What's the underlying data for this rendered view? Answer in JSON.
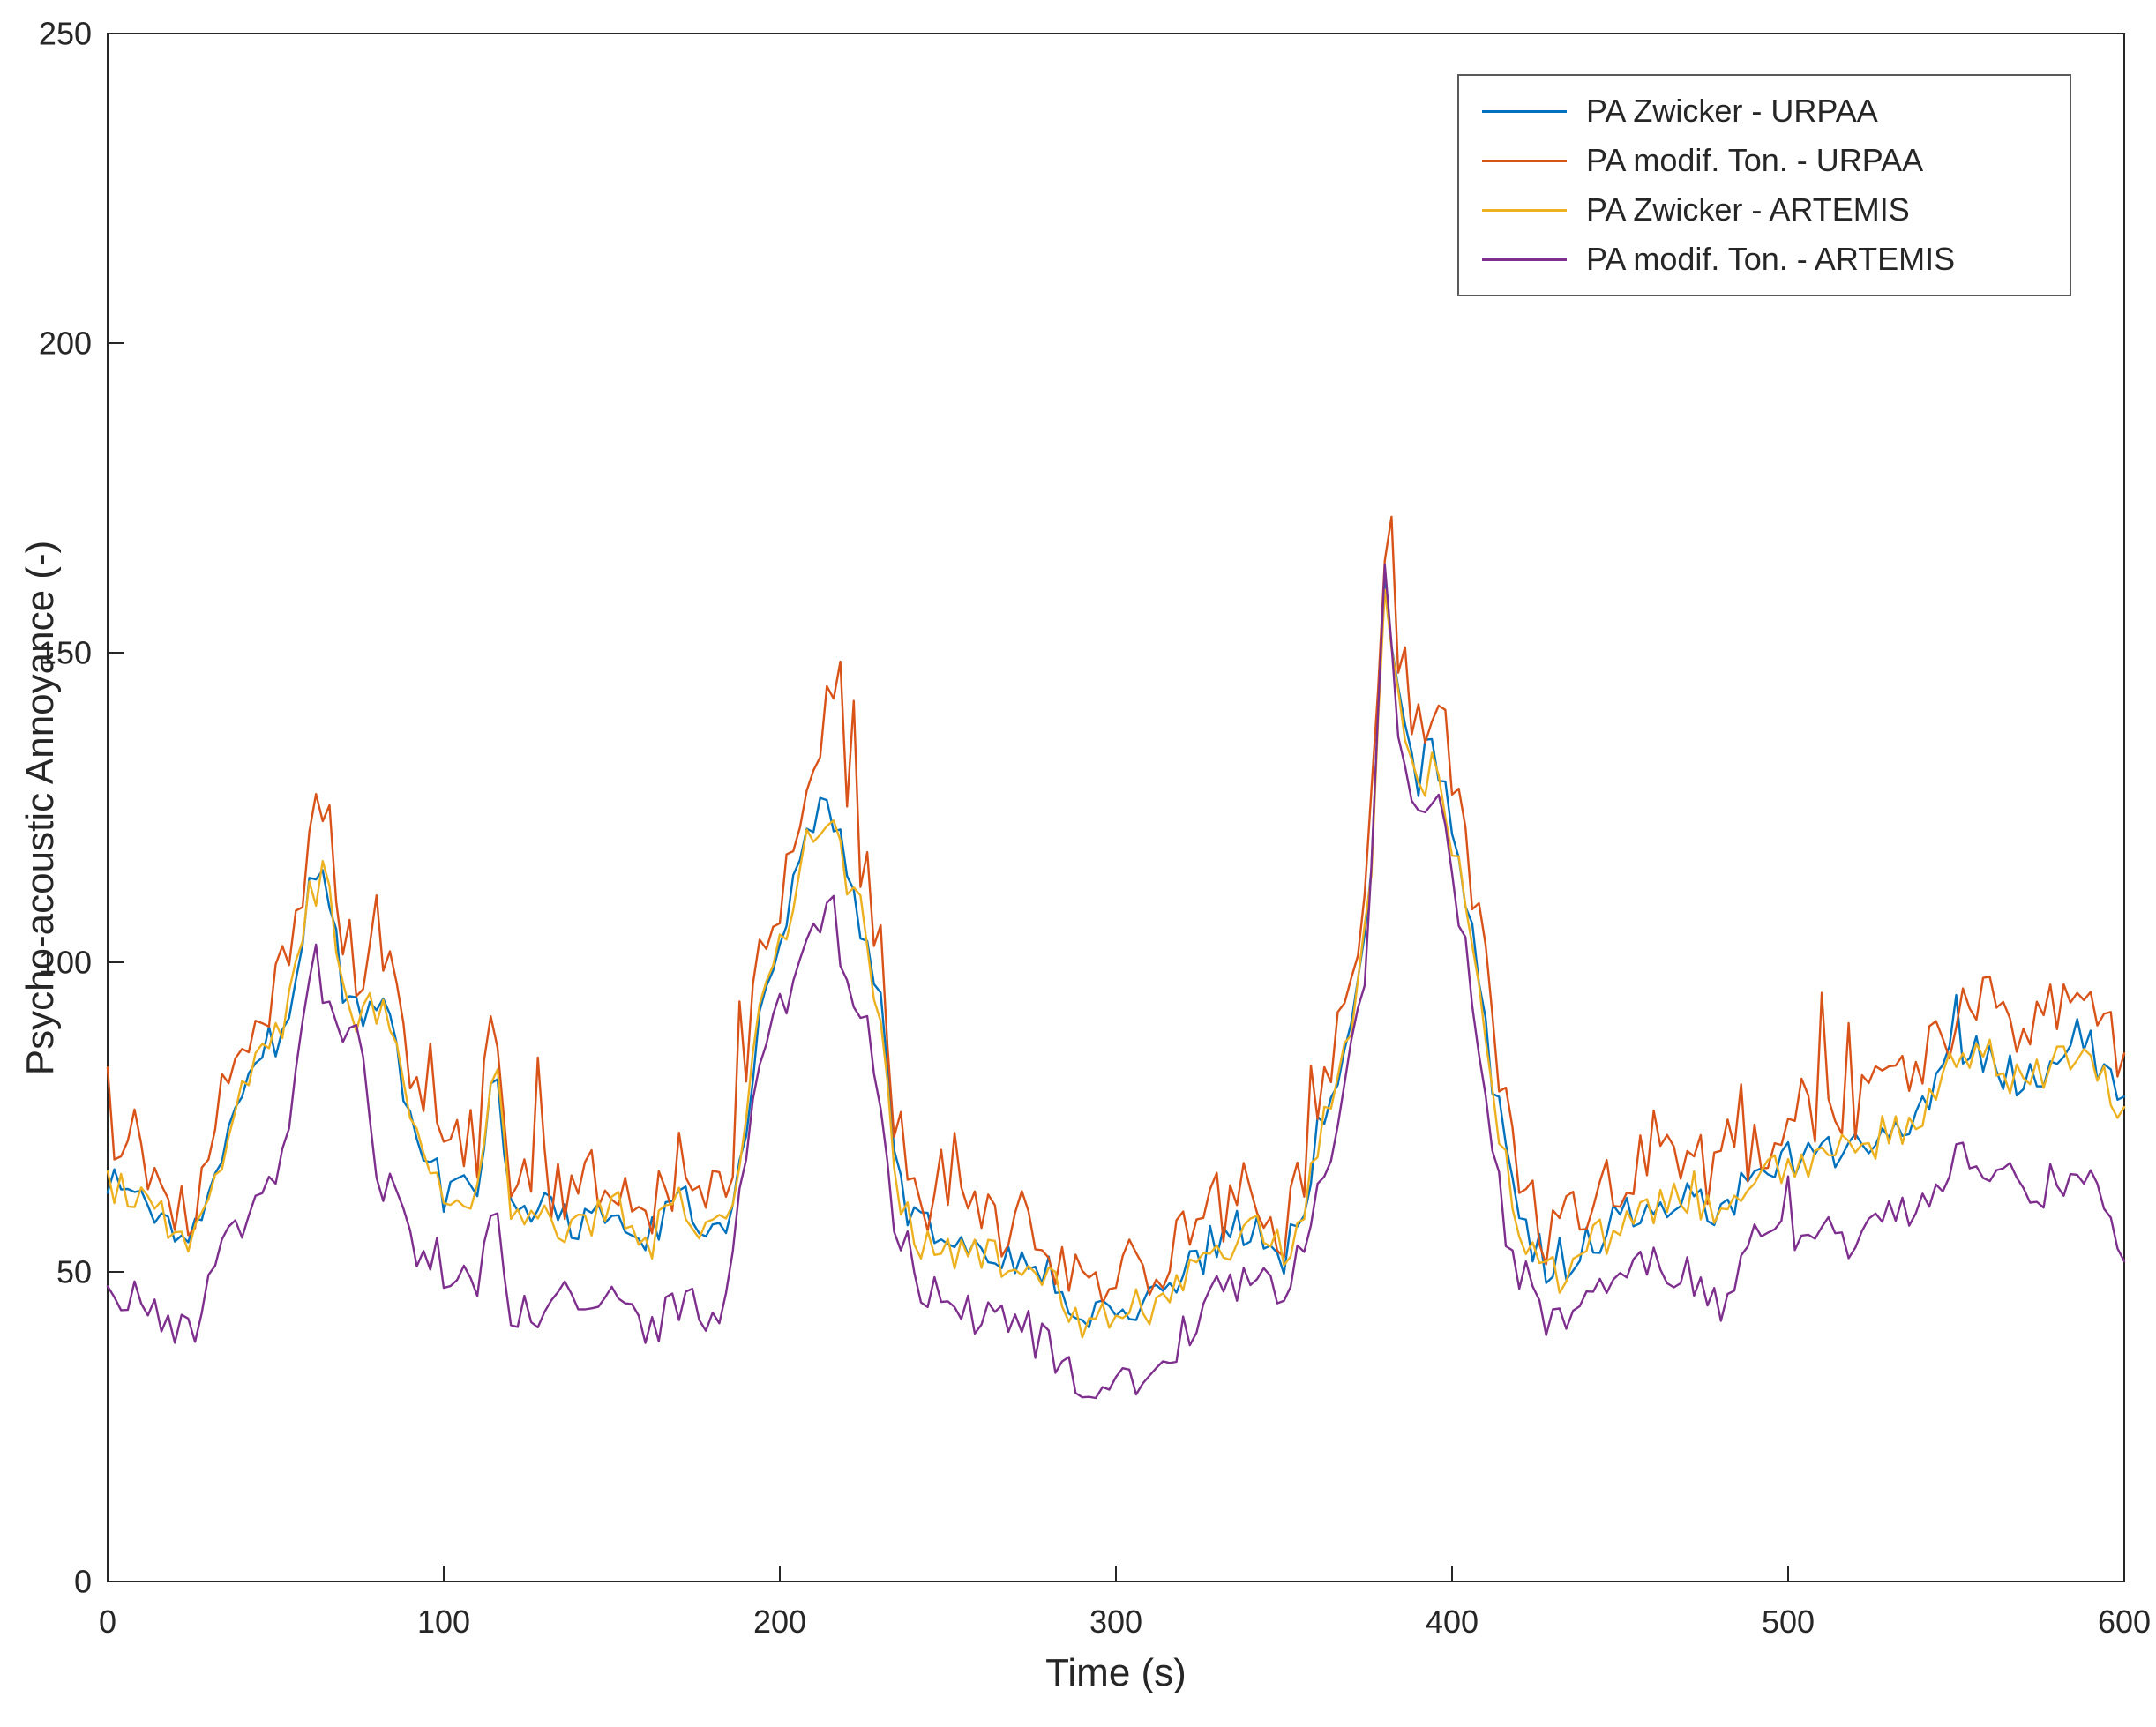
{
  "chart_data": {
    "type": "line",
    "title": "",
    "xlabel": "Time (s)",
    "ylabel": "Psycho-acoustic Annoyance (-)",
    "xlim": [
      0,
      600
    ],
    "ylim": [
      0,
      250
    ],
    "x_ticks": [
      0,
      100,
      200,
      300,
      400,
      500,
      600
    ],
    "y_ticks": [
      0,
      50,
      100,
      150,
      200,
      250
    ],
    "grid": false,
    "axis_color": "#262626",
    "legend_position": "top-right",
    "anchor_x": [
      0,
      10,
      20,
      25,
      30,
      40,
      50,
      55,
      60,
      65,
      70,
      75,
      80,
      85,
      90,
      100,
      110,
      115,
      120,
      130,
      140,
      150,
      160,
      170,
      180,
      185,
      190,
      195,
      200,
      205,
      210,
      215,
      220,
      225,
      230,
      235,
      240,
      250,
      260,
      270,
      280,
      290,
      300,
      310,
      320,
      330,
      340,
      350,
      355,
      360,
      365,
      370,
      375,
      380,
      385,
      390,
      395,
      400,
      405,
      410,
      415,
      420,
      430,
      440,
      450,
      460,
      470,
      480,
      490,
      500,
      510,
      520,
      530,
      540,
      550,
      560,
      570,
      580,
      590,
      600
    ],
    "series": [
      {
        "name": "PA Zwicker - URPAA",
        "color": "#0072BD",
        "noise_amp": 3.5,
        "spike_prob": 0.03,
        "spike_amp": 8,
        "anchor_y": [
          65,
          62,
          57,
          55,
          65,
          80,
          88,
          95,
          112,
          115,
          95,
          92,
          93,
          90,
          75,
          63,
          65,
          85,
          62,
          60,
          58,
          62,
          55,
          62,
          58,
          60,
          75,
          95,
          103,
          115,
          122,
          125,
          115,
          105,
          92,
          65,
          57,
          55,
          53,
          53,
          50,
          42,
          46,
          45,
          50,
          55,
          58,
          52,
          60,
          72,
          80,
          92,
          108,
          160,
          140,
          128,
          135,
          120,
          108,
          90,
          70,
          57,
          50,
          55,
          58,
          62,
          62,
          60,
          65,
          68,
          70,
          70,
          74,
          76,
          85,
          85,
          80,
          85,
          86,
          75
        ]
      },
      {
        "name": "PA modif. Ton. - URPAA",
        "color": "#D95319",
        "noise_amp": 6,
        "spike_prob": 0.1,
        "spike_amp": 18,
        "anchor_y": [
          72,
          68,
          62,
          58,
          70,
          88,
          97,
          103,
          122,
          128,
          103,
          98,
          100,
          98,
          82,
          68,
          70,
          95,
          67,
          65,
          63,
          67,
          60,
          67,
          62,
          65,
          82,
          105,
          112,
          125,
          135,
          140,
          128,
          115,
          100,
          72,
          62,
          60,
          58,
          58,
          55,
          46,
          50,
          50,
          55,
          60,
          63,
          57,
          65,
          78,
          88,
          100,
          115,
          163,
          148,
          138,
          142,
          130,
          118,
          100,
          78,
          62,
          55,
          60,
          63,
          68,
          68,
          66,
          70,
          74,
          76,
          76,
          80,
          83,
          92,
          92,
          86,
          92,
          93,
          82
        ]
      },
      {
        "name": "PA Zwicker - ARTEMIS",
        "color": "#EDB120",
        "noise_amp": 3.5,
        "spike_prob": 0.02,
        "spike_amp": 8,
        "anchor_y": [
          64,
          61,
          56,
          54,
          64,
          79,
          87,
          94,
          111,
          114,
          94,
          91,
          92,
          89,
          74,
          62,
          64,
          84,
          61,
          59,
          57,
          61,
          54,
          61,
          57,
          59,
          74,
          94,
          102,
          114,
          121,
          124,
          114,
          104,
          91,
          64,
          56,
          54,
          52,
          52,
          49,
          41,
          45,
          44,
          49,
          54,
          57,
          51,
          59,
          71,
          79,
          91,
          107,
          158,
          139,
          127,
          134,
          119,
          107,
          89,
          69,
          56,
          49,
          54,
          57,
          61,
          61,
          59,
          64,
          67,
          69,
          69,
          73,
          75,
          84,
          84,
          79,
          84,
          85,
          74
        ]
      },
      {
        "name": "PA modif. Ton. - ARTEMIS",
        "color": "#7E2F8E",
        "noise_amp": 3.5,
        "spike_prob": 0.03,
        "spike_amp": 8,
        "anchor_y": [
          47,
          45,
          42,
          40,
          50,
          58,
          66,
          75,
          100,
          95,
          85,
          88,
          65,
          62,
          55,
          50,
          48,
          60,
          42,
          45,
          47,
          48,
          40,
          45,
          42,
          48,
          70,
          85,
          92,
          100,
          105,
          110,
          98,
          92,
          78,
          55,
          48,
          45,
          43,
          42,
          38,
          30,
          32,
          33,
          40,
          46,
          50,
          46,
          52,
          62,
          72,
          85,
          100,
          165,
          132,
          124,
          130,
          115,
          100,
          80,
          60,
          46,
          42,
          46,
          48,
          52,
          50,
          45,
          55,
          56,
          58,
          55,
          58,
          60,
          70,
          68,
          62,
          65,
          65,
          50
        ]
      }
    ],
    "noise": {
      "seed": 1337,
      "step_s": 2
    }
  }
}
